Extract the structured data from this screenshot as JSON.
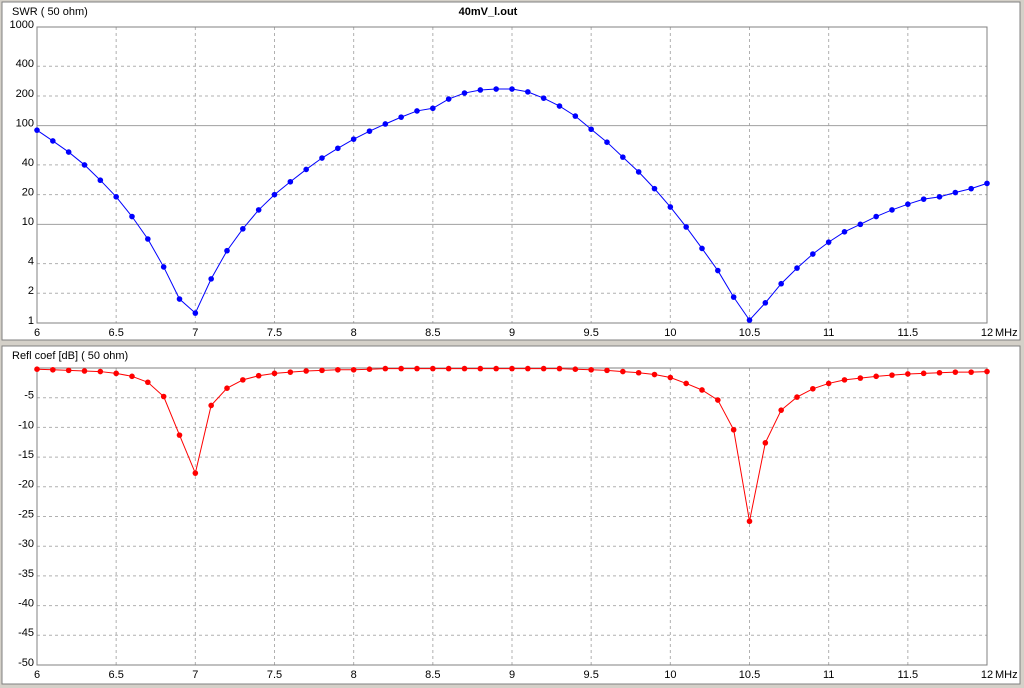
{
  "chart_data": [
    {
      "type": "line",
      "title": "40mV_l.out",
      "ylabel": "SWR ( 50 ohm)",
      "xlabel": "MHz",
      "log_scale": true,
      "grid": true,
      "color": "#0000ff",
      "x": [
        6.0,
        6.1,
        6.2,
        6.3,
        6.4,
        6.5,
        6.6,
        6.7,
        6.8,
        6.9,
        7.0,
        7.1,
        7.2,
        7.3,
        7.4,
        7.5,
        7.6,
        7.7,
        7.8,
        7.9,
        8.0,
        8.1,
        8.2,
        8.3,
        8.4,
        8.5,
        8.6,
        8.7,
        8.8,
        8.9,
        9.0,
        9.1,
        9.2,
        9.3,
        9.4,
        9.5,
        9.6,
        9.7,
        9.8,
        9.9,
        10.0,
        10.1,
        10.2,
        10.3,
        10.4,
        10.5,
        10.6,
        10.7,
        10.8,
        10.9,
        11.0,
        11.1,
        11.2,
        11.3,
        11.4,
        11.5,
        11.6,
        11.7,
        11.8,
        11.9,
        12.0
      ],
      "values": [
        90,
        70,
        54,
        40,
        28,
        19,
        12,
        7.1,
        3.7,
        1.75,
        1.26,
        2.8,
        5.4,
        9,
        14,
        20,
        27,
        36,
        47,
        59,
        73,
        88,
        104,
        122,
        141,
        150,
        186,
        214,
        230,
        235,
        235,
        220,
        190,
        158,
        125,
        92,
        68,
        48,
        34,
        23,
        15,
        9.4,
        5.7,
        3.4,
        1.83,
        1.07,
        1.6,
        2.5,
        3.6,
        5,
        6.6,
        8.4,
        10,
        12,
        14,
        16,
        18,
        19,
        21,
        23,
        26
      ],
      "xlim": [
        6,
        12
      ],
      "xticks": [
        6,
        6.5,
        7,
        7.5,
        8,
        8.5,
        9,
        9.5,
        10,
        10.5,
        11,
        11.5,
        12
      ],
      "ylim": [
        1,
        1000
      ],
      "yticks": [
        1,
        2,
        4,
        10,
        20,
        40,
        100,
        200,
        400,
        1000
      ]
    },
    {
      "type": "line",
      "ylabel": "Refl coef [dB] ( 50 ohm)",
      "xlabel": "MHz",
      "log_scale": false,
      "grid": true,
      "color": "#ff0000",
      "x": [
        6.0,
        6.1,
        6.2,
        6.3,
        6.4,
        6.5,
        6.6,
        6.7,
        6.8,
        6.9,
        7.0,
        7.1,
        7.2,
        7.3,
        7.4,
        7.5,
        7.6,
        7.7,
        7.8,
        7.9,
        8.0,
        8.1,
        8.2,
        8.3,
        8.4,
        8.5,
        8.6,
        8.7,
        8.8,
        8.9,
        9.0,
        9.1,
        9.2,
        9.3,
        9.4,
        9.5,
        9.6,
        9.7,
        9.8,
        9.9,
        10.0,
        10.1,
        10.2,
        10.3,
        10.4,
        10.5,
        10.6,
        10.7,
        10.8,
        10.9,
        11.0,
        11.1,
        11.2,
        11.3,
        11.4,
        11.5,
        11.6,
        11.7,
        11.8,
        11.9,
        12.0
      ],
      "values": [
        -0.2,
        -0.3,
        -0.4,
        -0.5,
        -0.6,
        -0.9,
        -1.4,
        -2.4,
        -4.8,
        -11.3,
        -17.7,
        -6.3,
        -3.4,
        -2,
        -1.3,
        -0.9,
        -0.7,
        -0.5,
        -0.4,
        -0.3,
        -0.3,
        -0.2,
        -0.1,
        -0.1,
        -0.1,
        -0.1,
        -0.1,
        -0.1,
        -0.1,
        -0.1,
        -0.1,
        -0.1,
        -0.1,
        -0.1,
        -0.2,
        -0.3,
        -0.4,
        -0.6,
        -0.8,
        -1.1,
        -1.6,
        -2.6,
        -3.7,
        -5.4,
        -10.4,
        -25.8,
        -12.6,
        -7.1,
        -4.9,
        -3.5,
        -2.6,
        -2,
        -1.7,
        -1.4,
        -1.2,
        -1,
        -0.9,
        -0.8,
        -0.7,
        -0.7,
        -0.6
      ],
      "xlim": [
        6,
        12
      ],
      "xticks": [
        6,
        6.5,
        7,
        7.5,
        8,
        8.5,
        9,
        9.5,
        10,
        10.5,
        11,
        11.5,
        12
      ],
      "ylim": [
        -50,
        0
      ],
      "yticks": [
        -50,
        -45,
        -40,
        -35,
        -30,
        -25,
        -20,
        -15,
        -10,
        -5
      ]
    }
  ]
}
